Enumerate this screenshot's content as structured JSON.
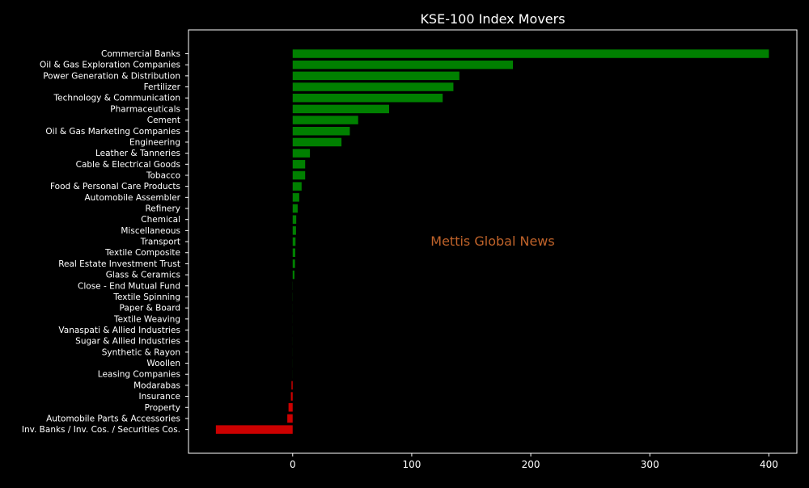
{
  "chart_data": {
    "type": "bar",
    "orientation": "horizontal",
    "title": "KSE-100 Index Movers",
    "xlabel": "",
    "ylabel": "",
    "watermark": "Mettis Global News",
    "xlim": [
      -87.5,
      423.5
    ],
    "xticks": [
      0,
      100,
      200,
      300,
      400
    ],
    "grid": false,
    "legend": "none",
    "categories": [
      "Commercial Banks",
      "Oil & Gas Exploration Companies",
      "Power Generation & Distribution",
      "Fertilizer",
      "Technology & Communication",
      "Pharmaceuticals",
      "Cement",
      "Oil & Gas Marketing Companies",
      "Engineering",
      "Leather & Tanneries",
      "Cable & Electrical Goods",
      "Tobacco",
      "Food & Personal Care Products",
      "Automobile Assembler",
      "Refinery",
      "Chemical",
      "Miscellaneous",
      "Transport",
      "Textile Composite",
      "Real Estate Investment Trust",
      "Glass & Ceramics",
      "Close - End Mutual Fund",
      "Textile Spinning",
      "Paper & Board",
      "Textile Weaving",
      "Vanaspati & Allied Industries",
      "Sugar & Allied Industries",
      "Synthetic & Rayon",
      "Woollen",
      "Leasing Companies",
      "Modarabas",
      "Insurance",
      "Property",
      "Automobile Parts & Accessories",
      "Inv. Banks / Inv. Cos. / Securities Cos."
    ],
    "values": [
      400,
      185,
      140,
      135,
      126,
      81,
      55,
      48,
      41,
      14.5,
      10.5,
      10.5,
      7.5,
      5.5,
      4.2,
      3.0,
      2.8,
      2.4,
      2.2,
      2.0,
      1.5,
      0.1,
      0.1,
      0.05,
      0.05,
      0.05,
      0.05,
      0.05,
      0.05,
      0.05,
      -1.0,
      -1.5,
      -3.5,
      -4.5,
      -64.5
    ],
    "colors": {
      "positive": "#008000",
      "negative": "#cc0000",
      "background": "#000000",
      "foreground": "#ffffff",
      "watermark": "#c0632a"
    }
  }
}
